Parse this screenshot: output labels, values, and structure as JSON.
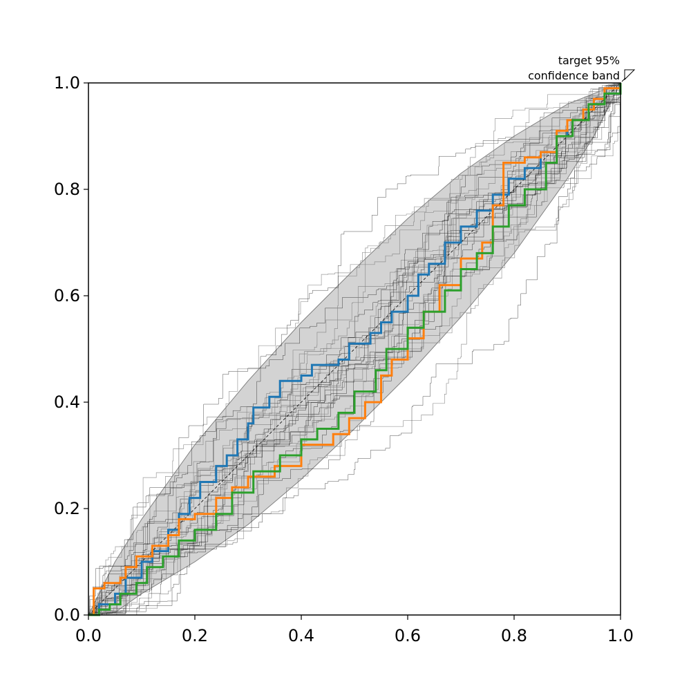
{
  "chart_data": {
    "type": "line",
    "annotation": [
      "target 95%",
      "confidence band"
    ],
    "xlim": [
      0.0,
      1.0
    ],
    "ylim": [
      0.0,
      1.0
    ],
    "xticks": [
      0.0,
      0.2,
      0.4,
      0.6,
      0.8,
      1.0
    ],
    "yticks": [
      0.0,
      0.2,
      0.4,
      0.6,
      0.8,
      1.0
    ],
    "xtick_labels": [
      "0.0",
      "0.2",
      "0.4",
      "0.6",
      "0.8",
      "1.0"
    ],
    "ytick_labels": [
      "0.0",
      "0.2",
      "0.4",
      "0.6",
      "0.8",
      "1.0"
    ],
    "grid": false,
    "legend": "none",
    "reference_line": {
      "from": [
        0,
        0
      ],
      "to": [
        1,
        1
      ],
      "style": "dashed",
      "color": "#000000"
    },
    "band": {
      "color": "#d3d3d3",
      "edge_color": "#808080",
      "upper": [
        [
          0,
          0
        ],
        [
          0.05,
          0.1
        ],
        [
          0.1,
          0.18
        ],
        [
          0.2,
          0.32
        ],
        [
          0.3,
          0.44
        ],
        [
          0.4,
          0.55
        ],
        [
          0.5,
          0.65
        ],
        [
          0.6,
          0.745
        ],
        [
          0.7,
          0.83
        ],
        [
          0.8,
          0.9
        ],
        [
          0.9,
          0.96
        ],
        [
          1,
          1
        ]
      ],
      "lower": [
        [
          0,
          0
        ],
        [
          0.05,
          0.005
        ],
        [
          0.1,
          0.04
        ],
        [
          0.2,
          0.1
        ],
        [
          0.3,
          0.17
        ],
        [
          0.4,
          0.255
        ],
        [
          0.5,
          0.35
        ],
        [
          0.6,
          0.45
        ],
        [
          0.7,
          0.56
        ],
        [
          0.8,
          0.68
        ],
        [
          0.9,
          0.82
        ],
        [
          0.95,
          0.9
        ],
        [
          1,
          1
        ]
      ]
    },
    "background_ensemble": {
      "count": 30,
      "colors": [
        "#000000",
        "#808080"
      ]
    },
    "series": [
      {
        "color": "#1f77b4",
        "points": [
          [
            0,
            0
          ],
          [
            0.02,
            0.02
          ],
          [
            0.05,
            0.04
          ],
          [
            0.07,
            0.07
          ],
          [
            0.1,
            0.1
          ],
          [
            0.12,
            0.12
          ],
          [
            0.15,
            0.16
          ],
          [
            0.17,
            0.19
          ],
          [
            0.19,
            0.22
          ],
          [
            0.21,
            0.25
          ],
          [
            0.24,
            0.28
          ],
          [
            0.26,
            0.3
          ],
          [
            0.28,
            0.33
          ],
          [
            0.3,
            0.36
          ],
          [
            0.31,
            0.39
          ],
          [
            0.34,
            0.41
          ],
          [
            0.36,
            0.44
          ],
          [
            0.4,
            0.45
          ],
          [
            0.42,
            0.47
          ],
          [
            0.47,
            0.48
          ],
          [
            0.49,
            0.51
          ],
          [
            0.53,
            0.53
          ],
          [
            0.55,
            0.55
          ],
          [
            0.57,
            0.57
          ],
          [
            0.6,
            0.6
          ],
          [
            0.62,
            0.64
          ],
          [
            0.64,
            0.66
          ],
          [
            0.67,
            0.7
          ],
          [
            0.7,
            0.73
          ],
          [
            0.73,
            0.76
          ],
          [
            0.76,
            0.79
          ],
          [
            0.79,
            0.82
          ],
          [
            0.82,
            0.84
          ],
          [
            0.85,
            0.87
          ],
          [
            0.88,
            0.9
          ],
          [
            0.9,
            0.93
          ],
          [
            0.93,
            0.95
          ],
          [
            0.95,
            0.97
          ],
          [
            0.97,
            0.98
          ],
          [
            1,
            1
          ]
        ]
      },
      {
        "color": "#ff7f0e",
        "points": [
          [
            0,
            0
          ],
          [
            0.01,
            0.05
          ],
          [
            0.03,
            0.06
          ],
          [
            0.06,
            0.07
          ],
          [
            0.07,
            0.09
          ],
          [
            0.09,
            0.11
          ],
          [
            0.12,
            0.13
          ],
          [
            0.15,
            0.15
          ],
          [
            0.17,
            0.18
          ],
          [
            0.2,
            0.19
          ],
          [
            0.24,
            0.22
          ],
          [
            0.27,
            0.24
          ],
          [
            0.3,
            0.26
          ],
          [
            0.35,
            0.28
          ],
          [
            0.4,
            0.32
          ],
          [
            0.46,
            0.34
          ],
          [
            0.49,
            0.37
          ],
          [
            0.52,
            0.4
          ],
          [
            0.55,
            0.45
          ],
          [
            0.57,
            0.48
          ],
          [
            0.6,
            0.52
          ],
          [
            0.63,
            0.57
          ],
          [
            0.66,
            0.62
          ],
          [
            0.7,
            0.67
          ],
          [
            0.74,
            0.7
          ],
          [
            0.76,
            0.77
          ],
          [
            0.78,
            0.85
          ],
          [
            0.82,
            0.86
          ],
          [
            0.85,
            0.87
          ],
          [
            0.88,
            0.91
          ],
          [
            0.9,
            0.93
          ],
          [
            0.93,
            0.95
          ],
          [
            0.95,
            0.97
          ],
          [
            0.97,
            0.99
          ],
          [
            1,
            1
          ]
        ]
      },
      {
        "color": "#2ca02c",
        "points": [
          [
            0,
            0
          ],
          [
            0.02,
            0.01
          ],
          [
            0.04,
            0.02
          ],
          [
            0.06,
            0.04
          ],
          [
            0.09,
            0.06
          ],
          [
            0.11,
            0.09
          ],
          [
            0.14,
            0.11
          ],
          [
            0.17,
            0.14
          ],
          [
            0.2,
            0.16
          ],
          [
            0.24,
            0.19
          ],
          [
            0.27,
            0.23
          ],
          [
            0.31,
            0.27
          ],
          [
            0.36,
            0.3
          ],
          [
            0.4,
            0.33
          ],
          [
            0.43,
            0.35
          ],
          [
            0.47,
            0.38
          ],
          [
            0.5,
            0.42
          ],
          [
            0.54,
            0.46
          ],
          [
            0.56,
            0.5
          ],
          [
            0.6,
            0.54
          ],
          [
            0.63,
            0.57
          ],
          [
            0.67,
            0.61
          ],
          [
            0.7,
            0.65
          ],
          [
            0.73,
            0.68
          ],
          [
            0.76,
            0.73
          ],
          [
            0.79,
            0.77
          ],
          [
            0.82,
            0.8
          ],
          [
            0.86,
            0.85
          ],
          [
            0.88,
            0.9
          ],
          [
            0.91,
            0.93
          ],
          [
            0.94,
            0.96
          ],
          [
            0.97,
            0.98
          ],
          [
            1,
            1
          ]
        ]
      }
    ]
  }
}
